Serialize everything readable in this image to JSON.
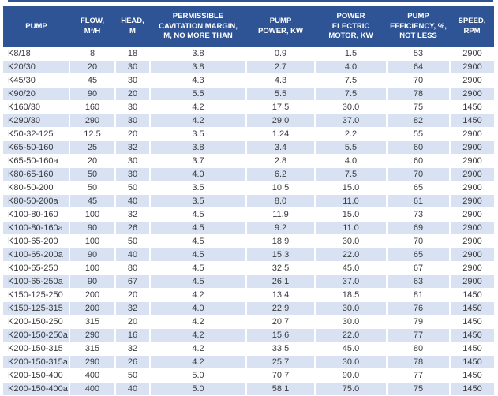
{
  "colors": {
    "header_bg": "#2F5496",
    "header_text": "#FFFFFF",
    "alt_row_bg": "#D9E2F3",
    "body_text": "#3B3B3B"
  },
  "table": {
    "columns": [
      {
        "label": "PUMP"
      },
      {
        "label": "FLOW,\nM³/H"
      },
      {
        "label": "HEAD,\nM"
      },
      {
        "label": "PERMISSIBLE\nCAVITATION MARGIN,\nM, NO MORE THAN"
      },
      {
        "label": "PUMP\nPOWER, KW"
      },
      {
        "label": "POWER\nELECTRIC\nMOTOR, KW"
      },
      {
        "label": "PUMP\nEFFICIENCY, %,\nNOT LESS"
      },
      {
        "label": "SPEED,\nRPM"
      }
    ],
    "rows": [
      [
        "K8/18",
        "8",
        "18",
        "3.8",
        "0.9",
        "1.5",
        "53",
        "2900"
      ],
      [
        "K20/30",
        "20",
        "30",
        "3.8",
        "2.7",
        "4.0",
        "64",
        "2900"
      ],
      [
        "K45/30",
        "45",
        "30",
        "4.3",
        "4.3",
        "7.5",
        "70",
        "2900"
      ],
      [
        "K90/20",
        "90",
        "20",
        "5.5",
        "5.5",
        "7.5",
        "78",
        "2900"
      ],
      [
        "K160/30",
        "160",
        "30",
        "4.2",
        "17.5",
        "30.0",
        "75",
        "1450"
      ],
      [
        "K290/30",
        "290",
        "30",
        "4.2",
        "29.0",
        "37.0",
        "82",
        "1450"
      ],
      [
        "K50-32-125",
        "12.5",
        "20",
        "3.5",
        "1.24",
        "2.2",
        "55",
        "2900"
      ],
      [
        "K65-50-160",
        "25",
        "32",
        "3.8",
        "3.4",
        "5.5",
        "60",
        "2900"
      ],
      [
        "K65-50-160a",
        "20",
        "30",
        "3.7",
        "2.8",
        "4.0",
        "60",
        "2900"
      ],
      [
        "K80-65-160",
        "50",
        "30",
        "4.0",
        "6.2",
        "7.5",
        "70",
        "2900"
      ],
      [
        "K80-50-200",
        "50",
        "50",
        "3.5",
        "10.5",
        "15.0",
        "65",
        "2900"
      ],
      [
        "K80-50-200a",
        "45",
        "40",
        "3.5",
        "8.0",
        "11.0",
        "61",
        "2900"
      ],
      [
        "K100-80-160",
        "100",
        "32",
        "4.5",
        "11.9",
        "15.0",
        "73",
        "2900"
      ],
      [
        "K100-80-160a",
        "90",
        "26",
        "4.5",
        "9.2",
        "11.0",
        "69",
        "2900"
      ],
      [
        "K100-65-200",
        "100",
        "50",
        "4.5",
        "18.9",
        "30.0",
        "70",
        "2900"
      ],
      [
        "K100-65-200a",
        "90",
        "40",
        "4.5",
        "15.3",
        "22.0",
        "65",
        "2900"
      ],
      [
        "K100-65-250",
        "100",
        "80",
        "4.5",
        "32.5",
        "45.0",
        "67",
        "2900"
      ],
      [
        "K100-65-250a",
        "90",
        "67",
        "4.5",
        "26.1",
        "37.0",
        "63",
        "2900"
      ],
      [
        "K150-125-250",
        "200",
        "20",
        "4.2",
        "13.4",
        "18.5",
        "81",
        "1450"
      ],
      [
        "K150-125-315",
        "200",
        "32",
        "4.0",
        "22.9",
        "30.0",
        "76",
        "1450"
      ],
      [
        "K200-150-250",
        "315",
        "20",
        "4.2",
        "20.7",
        "30.0",
        "79",
        "1450"
      ],
      [
        "K200-150-250a",
        "290",
        "16",
        "4.2",
        "15.6",
        "22.0",
        "77",
        "1450"
      ],
      [
        "K200-150-315",
        "315",
        "32",
        "4.2",
        "33.5",
        "45.0",
        "80",
        "1450"
      ],
      [
        "K200-150-315a",
        "290",
        "26",
        "4.2",
        "25.7",
        "30.0",
        "78",
        "1450"
      ],
      [
        "K200-150-400",
        "400",
        "50",
        "5.0",
        "70.7",
        "90.0",
        "77",
        "1450"
      ],
      [
        "K200-150-400a",
        "400",
        "40",
        "5.0",
        "58.1",
        "75.0",
        "75",
        "1450"
      ]
    ]
  }
}
